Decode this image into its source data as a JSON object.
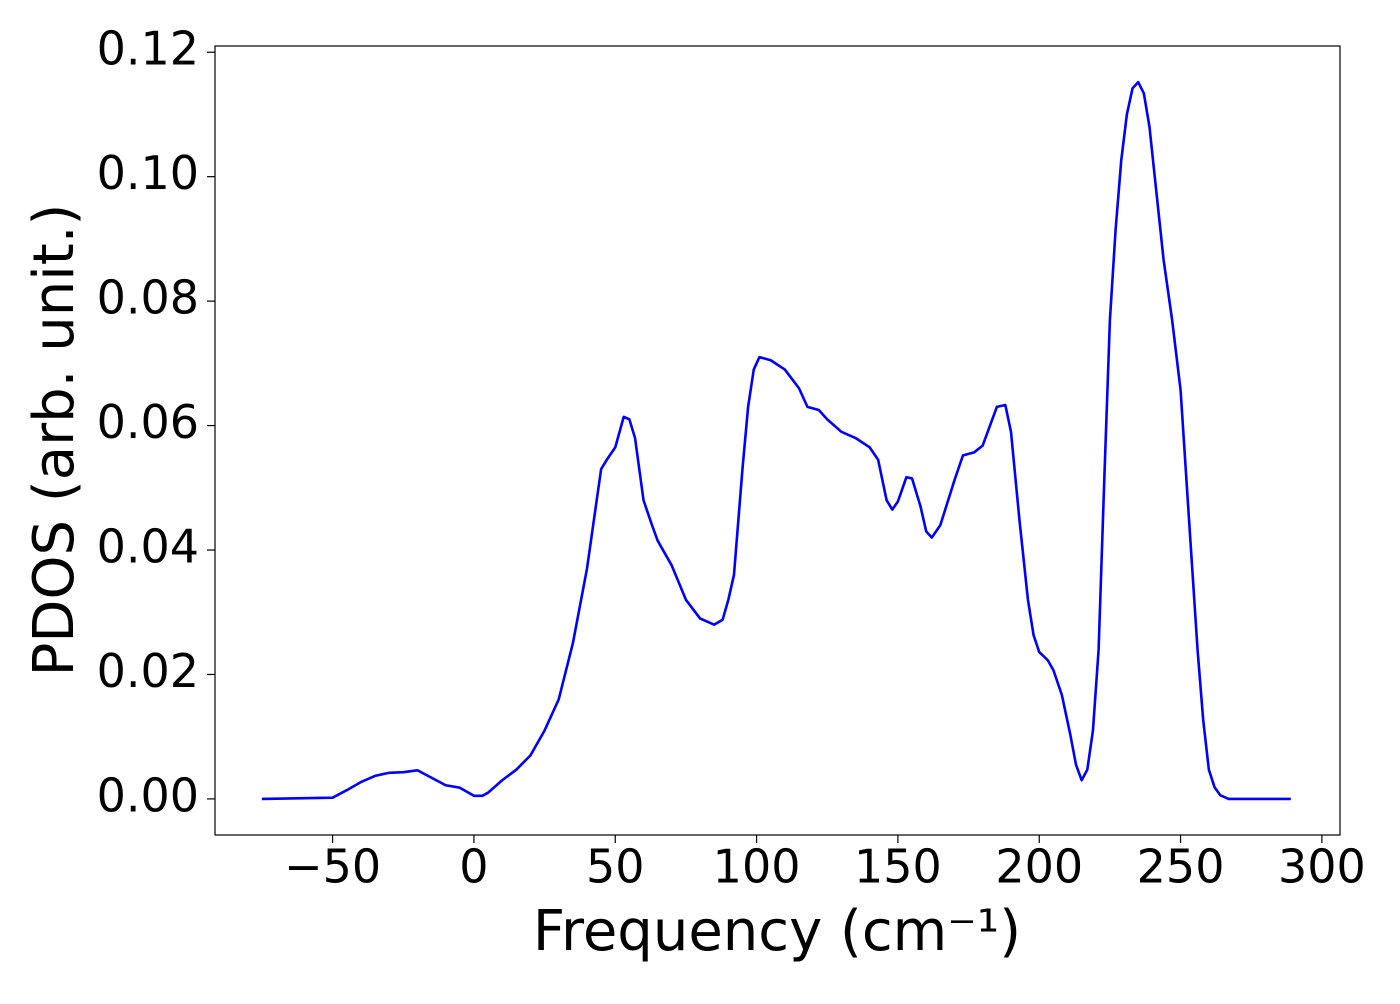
{
  "chart_data": {
    "type": "line",
    "xlabel": "Frequency (cm⁻¹)",
    "ylabel": "PDOS (arb. unit.)",
    "xlim": [
      -91.6,
      306.4
    ],
    "ylim": [
      -0.0058,
      0.121
    ],
    "xticks": [
      {
        "value": -50,
        "label": "−50"
      },
      0,
      50,
      100,
      150,
      200,
      250,
      300
    ],
    "yticks": [
      {
        "value": 0,
        "label": "0.00"
      },
      0.02,
      0.04,
      0.06,
      0.08,
      {
        "value": 0.1,
        "label": "0.10"
      },
      0.12
    ],
    "grid": false,
    "series": [
      {
        "color": "#0000ff",
        "x": [
          -75,
          -50,
          -45,
          -40,
          -35,
          -30,
          -25,
          -20,
          -15,
          -10,
          -5,
          0,
          3,
          5,
          10,
          15,
          20,
          25,
          30,
          35,
          40,
          45,
          47,
          50,
          53,
          55,
          57,
          60,
          63,
          65,
          70,
          75,
          80,
          85,
          88,
          90,
          92,
          95,
          97,
          99,
          101,
          105,
          110,
          115,
          118,
          122,
          125,
          130,
          135,
          140,
          143,
          146,
          148,
          150,
          153,
          155,
          158,
          160,
          162,
          165,
          170,
          173,
          177,
          180,
          185,
          188,
          190,
          193,
          196,
          198,
          200,
          203,
          205,
          208,
          211,
          213,
          215,
          217,
          219,
          221,
          223,
          225,
          227,
          229,
          231,
          233,
          235,
          237,
          239,
          241,
          244,
          247,
          250,
          253,
          256,
          258,
          260,
          262,
          264,
          267,
          289
        ],
        "values": [
          0,
          0.0002,
          0.0014,
          0.0027,
          0.0037,
          0.0042,
          0.0043,
          0.0046,
          0.0034,
          0.0022,
          0.0018,
          0.0005,
          0.0005,
          0.001,
          0.003,
          0.0047,
          0.007,
          0.011,
          0.016,
          0.025,
          0.037,
          0.053,
          0.0545,
          0.0565,
          0.0614,
          0.061,
          0.058,
          0.048,
          0.044,
          0.0415,
          0.0375,
          0.032,
          0.029,
          0.028,
          0.0288,
          0.032,
          0.036,
          0.053,
          0.063,
          0.069,
          0.071,
          0.0705,
          0.069,
          0.066,
          0.063,
          0.0625,
          0.061,
          0.059,
          0.058,
          0.0565,
          0.0545,
          0.048,
          0.0465,
          0.0478,
          0.0517,
          0.0515,
          0.047,
          0.043,
          0.042,
          0.044,
          0.0512,
          0.0552,
          0.0557,
          0.0568,
          0.063,
          0.0633,
          0.059,
          0.0448,
          0.032,
          0.0263,
          0.0236,
          0.0223,
          0.0207,
          0.0167,
          0.0103,
          0.0055,
          0.003,
          0.0047,
          0.011,
          0.024,
          0.0512,
          0.077,
          0.0914,
          0.1026,
          0.11,
          0.1142,
          0.1152,
          0.1134,
          0.108,
          0.0994,
          0.0866,
          0.077,
          0.0657,
          0.0448,
          0.024,
          0.0127,
          0.0047,
          0.0019,
          0.0006,
          0,
          0
        ]
      }
    ]
  }
}
